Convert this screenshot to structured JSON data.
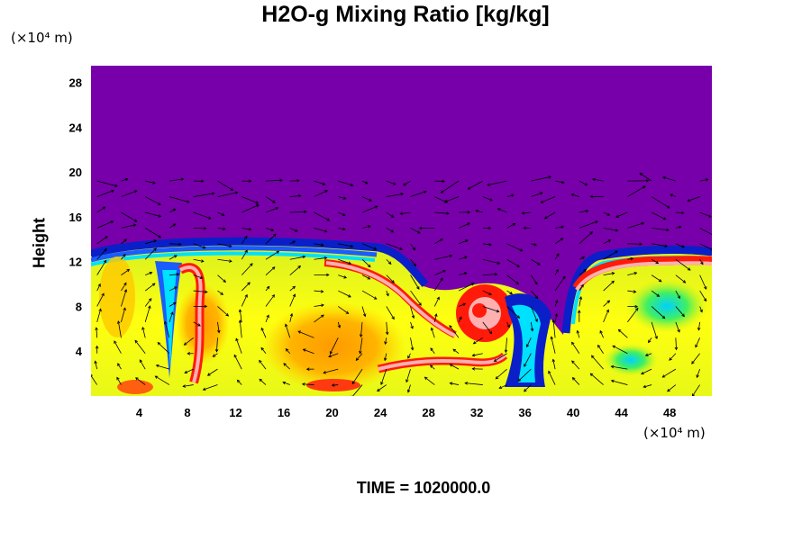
{
  "chart_data": {
    "type": "heatmap",
    "title": "H2O-g Mixing Ratio [kg/kg]",
    "ylabel": "Height",
    "x_unit": "(×10⁴ m)",
    "y_unit": "(×10⁴ m)",
    "time_label": "TIME = 1020000.0",
    "xlim": [
      0,
      51.5
    ],
    "ylim": [
      0,
      29.5
    ],
    "x_ticks": [
      4,
      8,
      12,
      16,
      20,
      24,
      28,
      32,
      36,
      40,
      44,
      48
    ],
    "y_ticks": [
      4,
      8,
      12,
      16,
      20,
      24,
      28
    ],
    "colors": {
      "dry_top": "#7700aa",
      "dark_blue": "#0a1fc8",
      "blue": "#1a5cff",
      "cyan": "#00e0ff",
      "green": "#2ee830",
      "yellow_green": "#c8f020",
      "yellow": "#ffff00",
      "orange": "#ffa500",
      "red": "#ff1a0a",
      "pink": "#ffb0b0",
      "arrow": "#000000"
    }
  }
}
